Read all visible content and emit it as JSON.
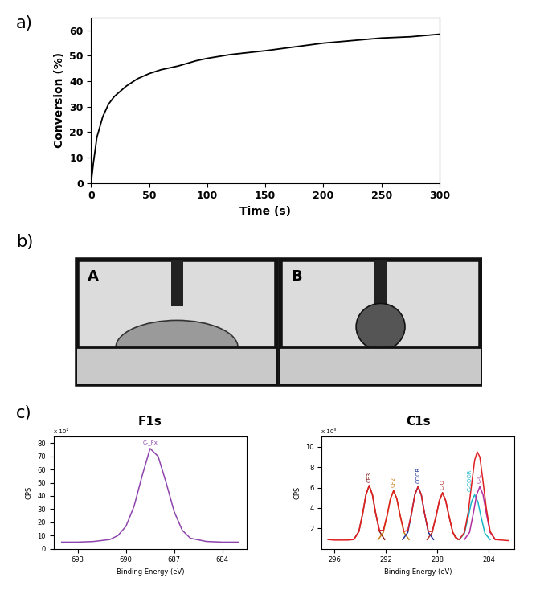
{
  "chart_data": [
    {
      "type": "line",
      "panel_label": "a)",
      "x_label": "Time (s)",
      "y_label": "Conversion (%)",
      "x": [
        0,
        2,
        5,
        10,
        15,
        20,
        30,
        40,
        50,
        60,
        75,
        90,
        100,
        120,
        150,
        175,
        200,
        225,
        250,
        275,
        300
      ],
      "values": [
        0,
        8,
        18,
        26,
        31,
        34,
        38,
        41,
        43,
        44.5,
        46,
        48,
        49,
        50.5,
        52,
        53.5,
        55,
        56,
        57,
        57.5,
        58.5
      ],
      "color": "#000000",
      "xlim": [
        0,
        300
      ],
      "xticks": [
        0,
        50,
        100,
        150,
        200,
        250,
        300
      ],
      "ylim": [
        0,
        65
      ],
      "yticks": [
        0,
        10,
        20,
        30,
        40,
        50,
        60
      ]
    },
    {
      "type": "line",
      "panel_label": "c)",
      "title": "F1s",
      "x_label": "Binding Energy (eV)",
      "y_label": "CPS",
      "y_multiplier_label": "x 10²",
      "series": [
        {
          "name": "C-_Fx",
          "color": "#8e44ad",
          "x": [
            694,
            693,
            692,
            691,
            690.5,
            690,
            689.5,
            689,
            688.5,
            688,
            687.5,
            687,
            686.5,
            686,
            685,
            684,
            683
          ],
          "values": [
            5,
            5,
            5.5,
            7,
            10,
            17,
            32,
            55,
            76,
            70,
            50,
            28,
            14,
            8,
            5.5,
            5,
            5
          ]
        }
      ],
      "xlim": [
        694.5,
        682.5
      ],
      "xticks": [
        693,
        690,
        687,
        684
      ],
      "ylim": [
        0,
        85
      ],
      "yticks": [
        0,
        10,
        20,
        30,
        40,
        50,
        60,
        70,
        80
      ]
    },
    {
      "type": "line",
      "title": "C1s",
      "x_label": "Binding Energy (eV)",
      "y_label": "CPS",
      "y_multiplier_label": "x 10³",
      "series": [
        {
          "name": "CF3",
          "color": "#8b1a1a",
          "x": [
            292.1,
            292.5,
            292.8,
            293.05,
            293.3,
            293.55,
            293.8,
            294.1,
            294.5
          ],
          "values": [
            0.9,
            1.7,
            3.5,
            5.3,
            6.2,
            5.3,
            3.5,
            1.7,
            0.9
          ]
        },
        {
          "name": "CF2",
          "color": "#c8801a",
          "x": [
            290.2,
            290.6,
            290.9,
            291.15,
            291.4,
            291.65,
            291.9,
            292.2,
            292.6
          ],
          "values": [
            0.9,
            1.6,
            3.3,
            4.9,
            5.7,
            4.9,
            3.3,
            1.6,
            0.9
          ]
        },
        {
          "name": "COOR",
          "color": "#1f2f9a",
          "x": [
            288.3,
            288.7,
            289.0,
            289.25,
            289.5,
            289.75,
            290.0,
            290.3,
            290.7
          ],
          "values": [
            0.9,
            1.6,
            3.5,
            5.3,
            6.1,
            5.3,
            3.5,
            1.6,
            0.9
          ]
        },
        {
          "name": "C-O",
          "color": "#b03030",
          "x": [
            286.4,
            286.8,
            287.1,
            287.35,
            287.6,
            287.85,
            288.1,
            288.4,
            288.8
          ],
          "values": [
            0.9,
            1.6,
            3.2,
            4.7,
            5.5,
            4.7,
            3.2,
            1.6,
            0.9
          ]
        },
        {
          "name": "C-COOR",
          "color": "#17b6c8",
          "x": [
            283.9,
            284.3,
            284.6,
            284.85,
            285.1,
            285.35,
            285.6,
            285.9,
            286.3
          ],
          "values": [
            0.9,
            1.5,
            3.1,
            4.6,
            5.3,
            4.6,
            3.1,
            1.5,
            0.9
          ]
        },
        {
          "name": "C-C",
          "color": "#b02fa0",
          "x": [
            283.5,
            283.9,
            284.2,
            284.45,
            284.7,
            284.95,
            285.2,
            285.5,
            285.9
          ],
          "values": [
            0.9,
            1.6,
            3.5,
            5.3,
            6.1,
            5.3,
            3.5,
            1.6,
            0.9
          ]
        },
        {
          "color": "#e02020",
          "x": [
            282.5,
            283,
            283.5,
            283.9,
            284.2,
            284.45,
            284.7,
            284.9,
            285.1,
            285.35,
            285.6,
            285.9,
            286.3,
            286.6,
            286.8,
            287.1,
            287.35,
            287.6,
            287.85,
            288.1,
            288.4,
            288.7,
            289.0,
            289.25,
            289.5,
            289.75,
            290.0,
            290.3,
            290.6,
            290.9,
            291.15,
            291.4,
            291.65,
            291.9,
            292.2,
            292.5,
            292.8,
            293.05,
            293.3,
            293.55,
            293.8,
            294.1,
            294.5,
            295,
            296,
            296.5
          ],
          "values": [
            0.8,
            0.85,
            0.9,
            1.7,
            4.0,
            6.6,
            9.0,
            9.5,
            8.7,
            6.2,
            3.6,
            1.6,
            0.9,
            1.1,
            1.6,
            3.2,
            4.7,
            5.5,
            4.7,
            3.2,
            1.7,
            1.7,
            3.5,
            5.3,
            6.1,
            5.3,
            3.5,
            1.8,
            1.7,
            3.3,
            4.9,
            5.7,
            4.9,
            3.3,
            1.8,
            1.8,
            3.5,
            5.3,
            6.2,
            5.3,
            3.5,
            1.7,
            0.9,
            0.85,
            0.85,
            0.9
          ]
        }
      ],
      "xlim": [
        297,
        282
      ],
      "xticks": [
        296,
        292,
        288,
        284
      ],
      "ylim": [
        0,
        11
      ],
      "yticks": [
        2,
        4,
        6,
        8,
        10
      ]
    }
  ],
  "photo": {
    "panel_label": "b)",
    "frames": [
      "A",
      "B"
    ]
  }
}
